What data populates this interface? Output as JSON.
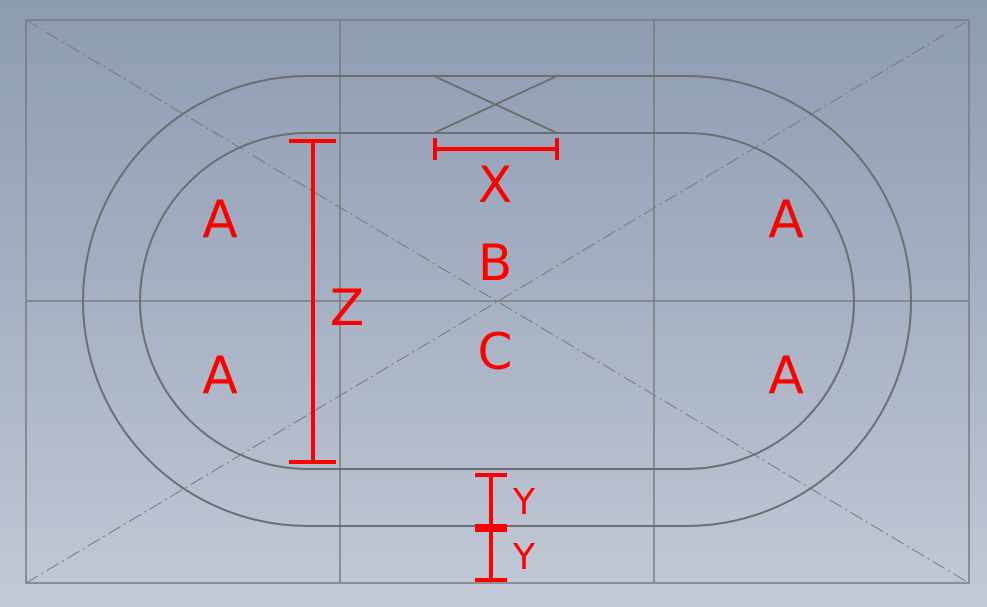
{
  "labels": {
    "a": "A",
    "b": "B",
    "c": "C",
    "x": "X",
    "y": "Y",
    "z": "Z"
  },
  "colors": {
    "background_top": "#8d9bb1",
    "background_bottom": "#c3c9d6",
    "guide_lines": "#7a7a7a",
    "track_outline": "#6e6e6e",
    "dimensions": "#ff0000"
  }
}
